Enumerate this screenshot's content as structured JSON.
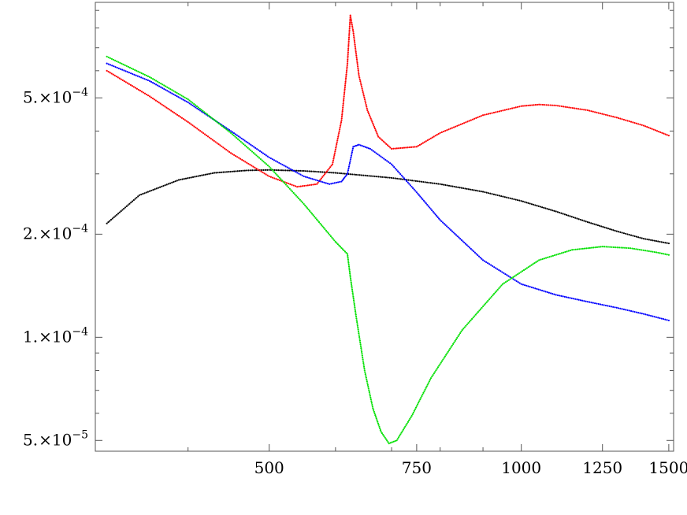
{
  "chart_data": {
    "type": "scatter",
    "title": "",
    "xlabel": "",
    "ylabel": "",
    "x_scale": "log",
    "y_scale": "log",
    "xlim": [
      310,
      1520
    ],
    "ylim": [
      4.65e-05,
      0.00095
    ],
    "grid": false,
    "x_ticks": [
      {
        "value": 500,
        "label": "500"
      },
      {
        "value": 750,
        "label": "750"
      },
      {
        "value": 1000,
        "label": "1000"
      },
      {
        "value": 1250,
        "label": "1250"
      },
      {
        "value": 1500,
        "label": "1500"
      }
    ],
    "x_minor_ticks": [
      400,
      600,
      700,
      800,
      900
    ],
    "y_ticks": [
      {
        "value": 5e-05,
        "mantissa": "5.",
        "times": "×",
        "base": "10",
        "exponent": "−5"
      },
      {
        "value": 0.0001,
        "mantissa": "1.",
        "times": "×",
        "base": "10",
        "exponent": "−4"
      },
      {
        "value": 0.0002,
        "mantissa": "2.",
        "times": "×",
        "base": "10",
        "exponent": "−4"
      },
      {
        "value": 0.0005,
        "mantissa": "5.",
        "times": "×",
        "base": "10",
        "exponent": "−4"
      }
    ],
    "y_minor_ticks": [
      6e-05,
      7e-05,
      8e-05,
      9e-05,
      0.0003,
      0.0004,
      0.0006,
      0.0007,
      0.0008,
      0.0009
    ],
    "series": [
      {
        "color": "#000000",
        "points": [
          [
            320,
            0.000215
          ],
          [
            350,
            0.00026
          ],
          [
            390,
            0.000288
          ],
          [
            430,
            0.000302
          ],
          [
            470,
            0.000307
          ],
          [
            500,
            0.000308
          ],
          [
            550,
            0.000306
          ],
          [
            600,
            0.000302
          ],
          [
            700,
            0.000292
          ],
          [
            800,
            0.00028
          ],
          [
            900,
            0.000266
          ],
          [
            1000,
            0.00025
          ],
          [
            1100,
            0.000233
          ],
          [
            1200,
            0.000217
          ],
          [
            1300,
            0.000204
          ],
          [
            1400,
            0.000194
          ],
          [
            1500,
            0.000188
          ]
        ]
      },
      {
        "color": "#ff0000",
        "points": [
          [
            320,
            0.0006
          ],
          [
            360,
            0.000505
          ],
          [
            400,
            0.000425
          ],
          [
            450,
            0.000345
          ],
          [
            500,
            0.000295
          ],
          [
            540,
            0.000275
          ],
          [
            570,
            0.00028
          ],
          [
            595,
            0.00032
          ],
          [
            610,
            0.00043
          ],
          [
            620,
            0.00063
          ],
          [
            625,
            0.00087
          ],
          [
            630,
            0.00078
          ],
          [
            640,
            0.00058
          ],
          [
            655,
            0.00046
          ],
          [
            675,
            0.000385
          ],
          [
            700,
            0.000355
          ],
          [
            750,
            0.00036
          ],
          [
            800,
            0.000395
          ],
          [
            900,
            0.000445
          ],
          [
            1000,
            0.000473
          ],
          [
            1050,
            0.000478
          ],
          [
            1100,
            0.000475
          ],
          [
            1200,
            0.00046
          ],
          [
            1300,
            0.000438
          ],
          [
            1400,
            0.000415
          ],
          [
            1500,
            0.000388
          ]
        ]
      },
      {
        "color": "#0000ff",
        "points": [
          [
            320,
            0.00063
          ],
          [
            360,
            0.00056
          ],
          [
            400,
            0.000485
          ],
          [
            450,
            0.0004
          ],
          [
            500,
            0.000335
          ],
          [
            550,
            0.000295
          ],
          [
            590,
            0.00028
          ],
          [
            610,
            0.000285
          ],
          [
            620,
            0.0003
          ],
          [
            630,
            0.00036
          ],
          [
            640,
            0.000365
          ],
          [
            660,
            0.000355
          ],
          [
            700,
            0.00032
          ],
          [
            750,
            0.000265
          ],
          [
            800,
            0.00022
          ],
          [
            900,
            0.000168
          ],
          [
            1000,
            0.000143
          ],
          [
            1100,
            0.000133
          ],
          [
            1200,
            0.000127
          ],
          [
            1300,
            0.000122
          ],
          [
            1400,
            0.000117
          ],
          [
            1500,
            0.000112
          ]
        ]
      },
      {
        "color": "#00e000",
        "points": [
          [
            320,
            0.00066
          ],
          [
            360,
            0.000575
          ],
          [
            400,
            0.000495
          ],
          [
            450,
            0.000395
          ],
          [
            500,
            0.000315
          ],
          [
            550,
            0.000245
          ],
          [
            600,
            0.00019
          ],
          [
            620,
            0.000175
          ],
          [
            625,
            0.00015
          ],
          [
            635,
            0.000115
          ],
          [
            650,
            8e-05
          ],
          [
            665,
            6.2e-05
          ],
          [
            680,
            5.3e-05
          ],
          [
            695,
            4.9e-05
          ],
          [
            710,
            5e-05
          ],
          [
            740,
            5.9e-05
          ],
          [
            780,
            7.6e-05
          ],
          [
            850,
            0.000105
          ],
          [
            950,
            0.000143
          ],
          [
            1050,
            0.000168
          ],
          [
            1150,
            0.00018
          ],
          [
            1250,
            0.000184
          ],
          [
            1350,
            0.000182
          ],
          [
            1450,
            0.000177
          ],
          [
            1500,
            0.000174
          ]
        ]
      }
    ]
  }
}
